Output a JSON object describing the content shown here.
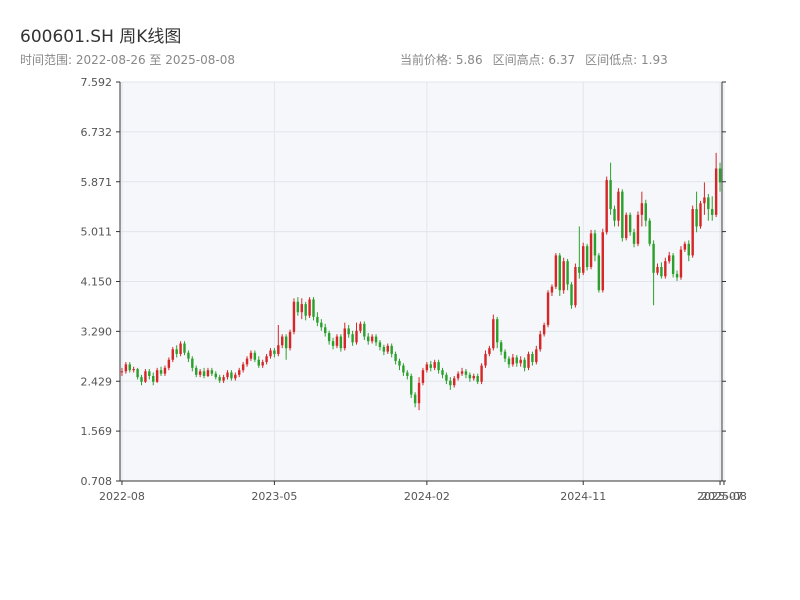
{
  "header": {
    "title": "600601.SH 周K线图",
    "subtitle": "时间范围: 2022-08-26 至 2025-08-08",
    "current_price": "当前价格: 5.86",
    "range_high": "区间高点: 6.37",
    "range_low": "区间低点: 1.93"
  },
  "colors": {
    "up": "#d62728",
    "down": "#2ca02c",
    "plot_bg": "#f5f7fa",
    "grid": "#e2e6ec",
    "axis": "#333333"
  },
  "chart_data": {
    "type": "candlestick",
    "title": "600601.SH 周K线图",
    "xlabel": "",
    "ylabel": "",
    "ylim": [
      0.708,
      7.592
    ],
    "grid": true,
    "y_ticks": [
      "0.708",
      "1.569",
      "2.429",
      "3.290",
      "4.150",
      "5.011",
      "5.871",
      "6.732",
      "7.592"
    ],
    "x_ticks": [
      {
        "label": "2022-08",
        "index": 0
      },
      {
        "label": "2023-05",
        "index": 39
      },
      {
        "label": "2024-02",
        "index": 78
      },
      {
        "label": "2024-11",
        "index": 118
      },
      {
        "label": "2025-07",
        "index": 153
      },
      {
        "label": "2025-08",
        "index": 154
      }
    ],
    "candles": [
      [
        2.6,
        2.6,
        2.52,
        2.66
      ],
      [
        2.6,
        2.72,
        2.56,
        2.76
      ],
      [
        2.72,
        2.62,
        2.58,
        2.76
      ],
      [
        2.62,
        2.64,
        2.58,
        2.68
      ],
      [
        2.64,
        2.5,
        2.46,
        2.66
      ],
      [
        2.5,
        2.42,
        2.36,
        2.54
      ],
      [
        2.42,
        2.6,
        2.4,
        2.64
      ],
      [
        2.6,
        2.52,
        2.46,
        2.64
      ],
      [
        2.52,
        2.42,
        2.36,
        2.58
      ],
      [
        2.42,
        2.62,
        2.4,
        2.66
      ],
      [
        2.62,
        2.56,
        2.52,
        2.68
      ],
      [
        2.56,
        2.66,
        2.52,
        2.7
      ],
      [
        2.66,
        2.8,
        2.62,
        2.84
      ],
      [
        2.8,
        2.98,
        2.76,
        3.02
      ],
      [
        2.98,
        2.9,
        2.84,
        3.05
      ],
      [
        2.9,
        3.08,
        2.86,
        3.12
      ],
      [
        3.08,
        2.92,
        2.88,
        3.12
      ],
      [
        2.92,
        2.82,
        2.76,
        2.96
      ],
      [
        2.82,
        2.66,
        2.6,
        2.86
      ],
      [
        2.66,
        2.54,
        2.5,
        2.7
      ],
      [
        2.54,
        2.6,
        2.5,
        2.64
      ],
      [
        2.6,
        2.52,
        2.48,
        2.66
      ],
      [
        2.52,
        2.62,
        2.5,
        2.66
      ],
      [
        2.62,
        2.56,
        2.52,
        2.66
      ],
      [
        2.56,
        2.5,
        2.46,
        2.6
      ],
      [
        2.5,
        2.44,
        2.4,
        2.54
      ],
      [
        2.44,
        2.5,
        2.4,
        2.54
      ],
      [
        2.5,
        2.58,
        2.46,
        2.62
      ],
      [
        2.58,
        2.48,
        2.44,
        2.62
      ],
      [
        2.48,
        2.54,
        2.44,
        2.58
      ],
      [
        2.54,
        2.62,
        2.5,
        2.66
      ],
      [
        2.62,
        2.72,
        2.58,
        2.76
      ],
      [
        2.72,
        2.82,
        2.68,
        2.86
      ],
      [
        2.82,
        2.92,
        2.78,
        2.96
      ],
      [
        2.92,
        2.8,
        2.76,
        2.96
      ],
      [
        2.8,
        2.7,
        2.66,
        2.86
      ],
      [
        2.7,
        2.76,
        2.66,
        2.8
      ],
      [
        2.76,
        2.86,
        2.72,
        2.9
      ],
      [
        2.86,
        2.96,
        2.82,
        3.0
      ],
      [
        2.96,
        2.9,
        2.84,
        3.0
      ],
      [
        2.9,
        3.05,
        2.86,
        3.4
      ],
      [
        3.05,
        3.2,
        3.0,
        3.24
      ],
      [
        3.2,
        3.0,
        2.8,
        3.24
      ],
      [
        3.0,
        3.28,
        2.96,
        3.32
      ],
      [
        3.28,
        3.8,
        3.24,
        3.86
      ],
      [
        3.8,
        3.62,
        3.56,
        3.88
      ],
      [
        3.62,
        3.76,
        3.5,
        3.86
      ],
      [
        3.76,
        3.56,
        3.48,
        3.8
      ],
      [
        3.56,
        3.84,
        3.52,
        3.88
      ],
      [
        3.84,
        3.54,
        3.48,
        3.88
      ],
      [
        3.54,
        3.44,
        3.38,
        3.62
      ],
      [
        3.44,
        3.36,
        3.3,
        3.5
      ],
      [
        3.36,
        3.26,
        3.2,
        3.42
      ],
      [
        3.26,
        3.12,
        3.06,
        3.3
      ],
      [
        3.12,
        3.04,
        2.98,
        3.18
      ],
      [
        3.04,
        3.2,
        3.0,
        3.24
      ],
      [
        3.2,
        3.0,
        2.94,
        3.24
      ],
      [
        3.0,
        3.34,
        2.96,
        3.44
      ],
      [
        3.34,
        3.24,
        3.18,
        3.4
      ],
      [
        3.24,
        3.1,
        3.04,
        3.3
      ],
      [
        3.1,
        3.3,
        3.06,
        3.44
      ],
      [
        3.3,
        3.42,
        3.26,
        3.46
      ],
      [
        3.42,
        3.2,
        3.14,
        3.46
      ],
      [
        3.2,
        3.12,
        3.06,
        3.26
      ],
      [
        3.12,
        3.2,
        3.08,
        3.24
      ],
      [
        3.2,
        3.1,
        3.04,
        3.24
      ],
      [
        3.1,
        3.02,
        2.96,
        3.14
      ],
      [
        3.02,
        2.94,
        2.88,
        3.06
      ],
      [
        2.94,
        3.04,
        2.9,
        3.08
      ],
      [
        3.04,
        2.9,
        2.84,
        3.08
      ],
      [
        2.9,
        2.78,
        2.72,
        2.94
      ],
      [
        2.78,
        2.7,
        2.62,
        2.82
      ],
      [
        2.7,
        2.58,
        2.52,
        2.74
      ],
      [
        2.58,
        2.52,
        2.46,
        2.62
      ],
      [
        2.52,
        2.2,
        2.14,
        2.56
      ],
      [
        2.2,
        2.05,
        1.98,
        2.24
      ],
      [
        2.05,
        2.4,
        1.93,
        2.5
      ],
      [
        2.4,
        2.62,
        2.36,
        2.66
      ],
      [
        2.62,
        2.72,
        2.58,
        2.76
      ],
      [
        2.72,
        2.66,
        2.6,
        2.78
      ],
      [
        2.66,
        2.76,
        2.62,
        2.8
      ],
      [
        2.76,
        2.62,
        2.56,
        2.8
      ],
      [
        2.62,
        2.54,
        2.48,
        2.66
      ],
      [
        2.54,
        2.44,
        2.38,
        2.58
      ],
      [
        2.44,
        2.36,
        2.28,
        2.5
      ],
      [
        2.36,
        2.48,
        2.32,
        2.52
      ],
      [
        2.48,
        2.56,
        2.44,
        2.6
      ],
      [
        2.56,
        2.6,
        2.52,
        2.66
      ],
      [
        2.6,
        2.54,
        2.48,
        2.64
      ],
      [
        2.54,
        2.48,
        2.42,
        2.58
      ],
      [
        2.48,
        2.52,
        2.44,
        2.56
      ],
      [
        2.52,
        2.42,
        2.38,
        2.56
      ],
      [
        2.42,
        2.7,
        2.38,
        2.74
      ],
      [
        2.7,
        2.9,
        2.66,
        2.96
      ],
      [
        2.9,
        3.0,
        2.86,
        3.04
      ],
      [
        3.0,
        3.5,
        2.96,
        3.58
      ],
      [
        3.5,
        3.1,
        3.0,
        3.54
      ],
      [
        3.1,
        2.94,
        2.88,
        3.14
      ],
      [
        2.94,
        2.82,
        2.76,
        2.98
      ],
      [
        2.82,
        2.72,
        2.66,
        2.86
      ],
      [
        2.72,
        2.84,
        2.68,
        2.9
      ],
      [
        2.84,
        2.74,
        2.68,
        2.88
      ],
      [
        2.74,
        2.8,
        2.68,
        2.86
      ],
      [
        2.8,
        2.66,
        2.6,
        2.84
      ],
      [
        2.66,
        2.9,
        2.62,
        2.94
      ],
      [
        2.9,
        2.76,
        2.7,
        2.94
      ],
      [
        2.76,
        2.98,
        2.72,
        3.04
      ],
      [
        2.98,
        3.24,
        2.94,
        3.3
      ],
      [
        3.24,
        3.4,
        3.2,
        3.44
      ],
      [
        3.4,
        3.96,
        3.36,
        4.0
      ],
      [
        3.96,
        4.06,
        3.9,
        4.1
      ],
      [
        4.06,
        4.6,
        4.02,
        4.64
      ],
      [
        4.6,
        4.0,
        3.9,
        4.64
      ],
      [
        4.0,
        4.5,
        3.94,
        4.56
      ],
      [
        4.5,
        4.1,
        4.0,
        4.54
      ],
      [
        4.1,
        3.74,
        3.68,
        4.14
      ],
      [
        3.74,
        4.4,
        3.7,
        4.46
      ],
      [
        4.4,
        4.3,
        4.2,
        5.1
      ],
      [
        4.3,
        4.76,
        4.26,
        4.82
      ],
      [
        4.76,
        4.4,
        4.34,
        4.8
      ],
      [
        4.4,
        4.98,
        4.36,
        5.04
      ],
      [
        4.98,
        4.6,
        4.5,
        5.04
      ],
      [
        4.6,
        4.0,
        3.96,
        4.64
      ],
      [
        4.0,
        5.0,
        3.96,
        5.06
      ],
      [
        5.0,
        5.9,
        4.96,
        5.96
      ],
      [
        5.9,
        5.4,
        5.3,
        6.2
      ],
      [
        5.4,
        5.2,
        5.1,
        5.46
      ],
      [
        5.2,
        5.7,
        5.1,
        5.76
      ],
      [
        5.7,
        4.9,
        4.84,
        5.74
      ],
      [
        4.9,
        5.3,
        4.86,
        5.34
      ],
      [
        5.3,
        5.0,
        4.94,
        5.34
      ],
      [
        5.0,
        4.8,
        4.74,
        5.06
      ],
      [
        4.8,
        5.3,
        4.76,
        5.36
      ],
      [
        5.3,
        5.5,
        5.1,
        5.7
      ],
      [
        5.5,
        5.2,
        5.1,
        5.56
      ],
      [
        5.2,
        4.8,
        4.76,
        5.24
      ],
      [
        4.8,
        4.3,
        3.74,
        4.86
      ],
      [
        4.3,
        4.4,
        4.26,
        4.46
      ],
      [
        4.4,
        4.24,
        4.2,
        4.48
      ],
      [
        4.24,
        4.5,
        4.2,
        4.56
      ],
      [
        4.5,
        4.6,
        4.46,
        4.66
      ],
      [
        4.6,
        4.28,
        4.22,
        4.64
      ],
      [
        4.28,
        4.22,
        4.16,
        4.34
      ],
      [
        4.22,
        4.7,
        4.18,
        4.76
      ],
      [
        4.7,
        4.8,
        4.66,
        4.84
      ],
      [
        4.8,
        4.6,
        4.5,
        4.86
      ],
      [
        4.6,
        5.4,
        4.56,
        5.46
      ],
      [
        5.4,
        5.1,
        5.0,
        5.7
      ],
      [
        5.1,
        5.5,
        5.06,
        5.54
      ],
      [
        5.5,
        5.6,
        5.3,
        5.86
      ],
      [
        5.6,
        5.4,
        5.2,
        5.66
      ],
      [
        5.4,
        5.3,
        5.2,
        5.62
      ],
      [
        5.3,
        6.1,
        5.26,
        6.37
      ],
      [
        6.1,
        5.86,
        5.7,
        6.2
      ]
    ]
  }
}
